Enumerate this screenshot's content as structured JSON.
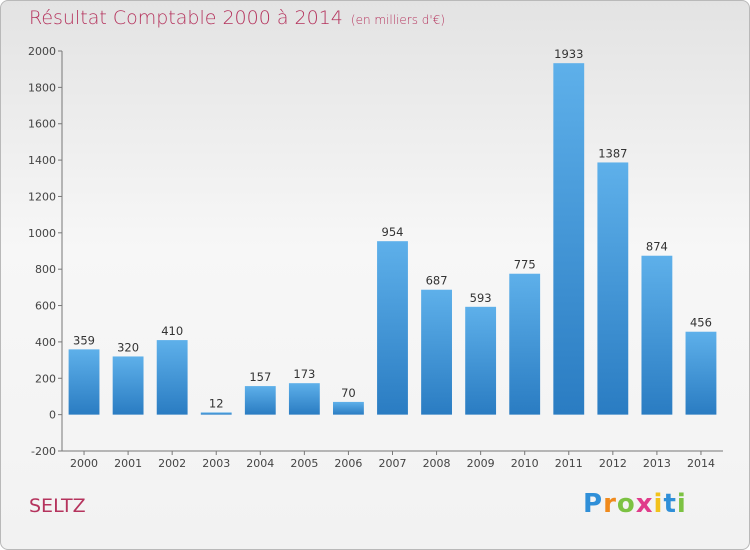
{
  "header": {
    "title": "Résultat Comptable 2000 à 2014",
    "subtitle": "(en milliers d'€)"
  },
  "footer": {
    "town": "SELTZ",
    "logo_letters": [
      "P",
      "r",
      "o",
      "x",
      "i",
      "t",
      "i"
    ],
    "logo_colors": [
      "#2f8fd8",
      "#f08a1c",
      "#7cc242",
      "#e03c8a",
      "#f2c21b",
      "#2f8fd8",
      "#7cc242"
    ]
  },
  "colors": {
    "title": "#b5335d",
    "bar_top": "#5eb0ea",
    "bar_bottom": "#2a7cc2"
  },
  "chart_data": {
    "type": "bar",
    "categories": [
      "2000",
      "2001",
      "2002",
      "2003",
      "2004",
      "2005",
      "2006",
      "2007",
      "2008",
      "2009",
      "2010",
      "2011",
      "2012",
      "2013",
      "2014"
    ],
    "values": [
      359,
      320,
      410,
      12,
      157,
      173,
      70,
      954,
      687,
      593,
      775,
      1933,
      1387,
      874,
      456
    ],
    "data_labels": [
      "359",
      "320",
      "410",
      "12",
      "157",
      "173",
      "70",
      "954",
      "687",
      "593",
      "775",
      "1933",
      "1387",
      "874",
      "456"
    ],
    "title": "Résultat Comptable 2000 à 2014",
    "xlabel": "",
    "ylabel": "",
    "ylim": [
      -200,
      2000
    ],
    "yticks": [
      -200,
      0,
      200,
      400,
      600,
      800,
      1000,
      1200,
      1400,
      1600,
      1800,
      2000
    ],
    "ytick_labels": [
      "-200",
      "0",
      "200",
      "400",
      "600",
      "800",
      "1000",
      "1200",
      "1400",
      "1600",
      "1800",
      "2000"
    ],
    "grid": false,
    "legend": "none"
  }
}
